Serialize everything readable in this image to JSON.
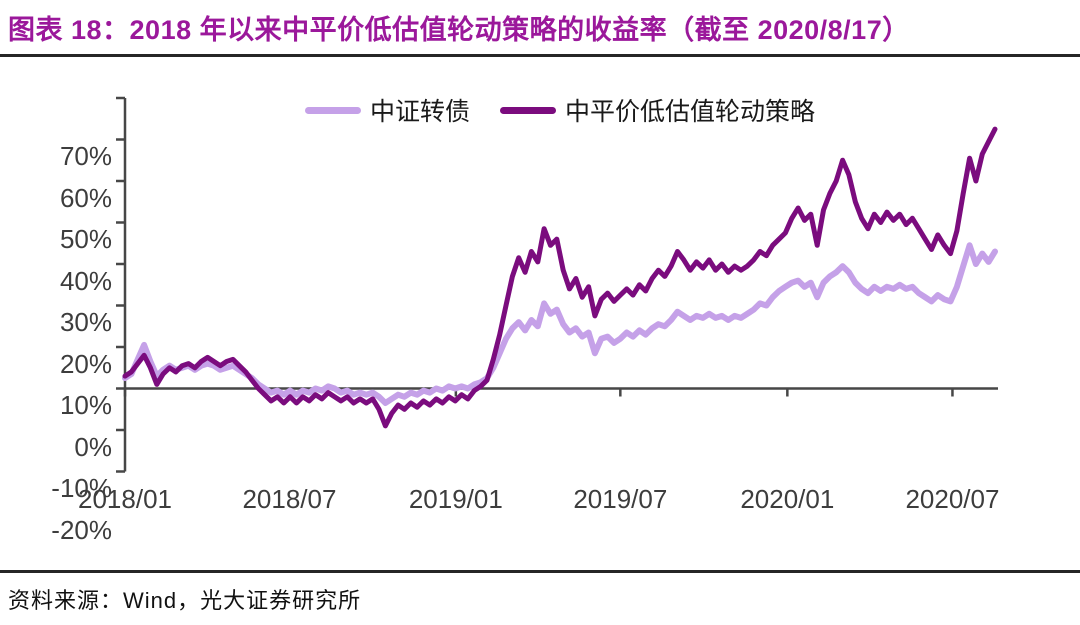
{
  "title": "图表 18：2018 年以来中平价低估值轮动策略的收益率（截至 2020/8/17）",
  "source": "资料来源：Wind，光大证券研究所",
  "colors": {
    "title": "#9B189B",
    "strategy_line": "#7B0C7E",
    "index_line": "#C5A1E8",
    "axis": "#474747",
    "divider": "#262626",
    "tick_text": "#3D3D3D"
  },
  "legend": [
    {
      "label": "中证转债"
    },
    {
      "label": "中平价低估值轮动策略"
    }
  ],
  "chart_data": {
    "type": "line",
    "title": "2018 年以来中平价低估值轮动策略的收益率",
    "x_unit": "weeks since 2018/01",
    "xlim": [
      0,
      137
    ],
    "ylim": [
      -20,
      70
    ],
    "grid": false,
    "zero_baseline": true,
    "legend_position": "top-center",
    "x_ticks": [
      {
        "w": 0,
        "label": "2018/01"
      },
      {
        "w": 25.9,
        "label": "2018/07"
      },
      {
        "w": 52.1,
        "label": "2019/01"
      },
      {
        "w": 78.0,
        "label": "2019/07"
      },
      {
        "w": 104.3,
        "label": "2020/01"
      },
      {
        "w": 130.3,
        "label": "2020/07"
      }
    ],
    "y_ticks": [
      {
        "v": 70,
        "label": "70%"
      },
      {
        "v": 60,
        "label": "60%"
      },
      {
        "v": 50,
        "label": "50%"
      },
      {
        "v": 40,
        "label": "40%"
      },
      {
        "v": 30,
        "label": "30%"
      },
      {
        "v": 20,
        "label": "20%"
      },
      {
        "v": 10,
        "label": "10%"
      },
      {
        "v": 0,
        "label": "0%"
      },
      {
        "v": -10,
        "label": "-10%"
      },
      {
        "v": -20,
        "label": "-20%"
      }
    ],
    "series": [
      {
        "name": "中证转债",
        "color": "#C5A1E8",
        "values": [
          2.5,
          3.5,
          7.0,
          10.5,
          6.5,
          3.0,
          4.5,
          5.5,
          4.5,
          5.0,
          5.5,
          4.5,
          5.5,
          6.0,
          5.5,
          4.5,
          5.0,
          5.5,
          4.5,
          3.5,
          2.5,
          1.0,
          0.0,
          -1.0,
          -0.5,
          -1.5,
          -0.5,
          -1.5,
          -0.5,
          -1.0,
          0.0,
          -0.5,
          0.5,
          0.0,
          -1.0,
          -0.5,
          -1.5,
          -1.0,
          -1.5,
          -1.0,
          -2.0,
          -3.5,
          -2.5,
          -1.5,
          -2.0,
          -1.0,
          -1.5,
          -0.5,
          -1.0,
          0.0,
          -0.5,
          0.5,
          0.0,
          0.5,
          0.0,
          1.0,
          1.5,
          2.5,
          5.0,
          8.5,
          12.0,
          14.5,
          16.0,
          14.0,
          16.5,
          15.0,
          20.5,
          18.0,
          19.0,
          15.5,
          13.5,
          14.5,
          12.5,
          13.5,
          8.5,
          12.0,
          12.5,
          11.0,
          12.0,
          13.5,
          12.5,
          14.0,
          13.0,
          14.5,
          15.5,
          15.0,
          16.5,
          18.5,
          17.5,
          16.5,
          17.5,
          17.0,
          18.0,
          17.0,
          17.5,
          16.5,
          17.5,
          17.0,
          18.0,
          19.0,
          20.5,
          20.0,
          22.0,
          23.5,
          24.5,
          25.5,
          26.0,
          24.5,
          25.5,
          22.0,
          25.5,
          27.0,
          28.0,
          29.5,
          28.0,
          25.5,
          24.0,
          23.0,
          24.5,
          23.5,
          24.5,
          24.0,
          25.0,
          24.0,
          24.5,
          23.0,
          22.0,
          21.0,
          22.5,
          21.5,
          21.0,
          24.5,
          29.5,
          34.5,
          30.0,
          32.5,
          30.5,
          33.0
        ]
      },
      {
        "name": "中平价低估值轮动策略",
        "color": "#7B0C7E",
        "values": [
          3.0,
          4.0,
          6.0,
          8.0,
          5.0,
          1.0,
          3.5,
          5.0,
          4.0,
          5.5,
          6.0,
          5.0,
          6.5,
          7.5,
          6.5,
          5.5,
          6.5,
          7.0,
          5.5,
          4.0,
          2.0,
          0.0,
          -1.5,
          -3.0,
          -2.0,
          -3.5,
          -2.0,
          -3.5,
          -2.0,
          -3.0,
          -1.5,
          -2.5,
          -1.0,
          -2.0,
          -3.0,
          -2.0,
          -3.5,
          -2.5,
          -3.5,
          -2.5,
          -5.0,
          -9.0,
          -6.0,
          -4.0,
          -5.0,
          -3.5,
          -4.5,
          -3.0,
          -4.0,
          -2.5,
          -3.5,
          -2.0,
          -3.0,
          -1.5,
          -2.5,
          -0.5,
          0.5,
          2.0,
          7.0,
          13.0,
          20.0,
          27.0,
          31.5,
          28.0,
          33.0,
          30.5,
          38.5,
          34.5,
          36.0,
          28.5,
          24.0,
          26.5,
          22.0,
          24.5,
          17.5,
          21.5,
          23.0,
          21.0,
          22.5,
          24.0,
          22.5,
          25.0,
          23.5,
          26.5,
          28.5,
          27.0,
          29.5,
          33.0,
          31.0,
          28.5,
          30.5,
          29.0,
          31.0,
          28.5,
          30.0,
          28.0,
          29.5,
          28.5,
          29.5,
          31.0,
          33.0,
          32.0,
          34.5,
          36.0,
          37.5,
          41.0,
          43.5,
          40.5,
          42.0,
          34.5,
          43.0,
          47.0,
          50.0,
          55.0,
          51.5,
          45.0,
          41.0,
          38.5,
          42.0,
          40.0,
          42.5,
          40.5,
          42.0,
          39.5,
          41.0,
          38.5,
          36.0,
          33.5,
          37.0,
          34.5,
          32.5,
          38.0,
          47.0,
          55.5,
          50.0,
          56.5,
          59.5,
          62.5
        ]
      }
    ]
  }
}
